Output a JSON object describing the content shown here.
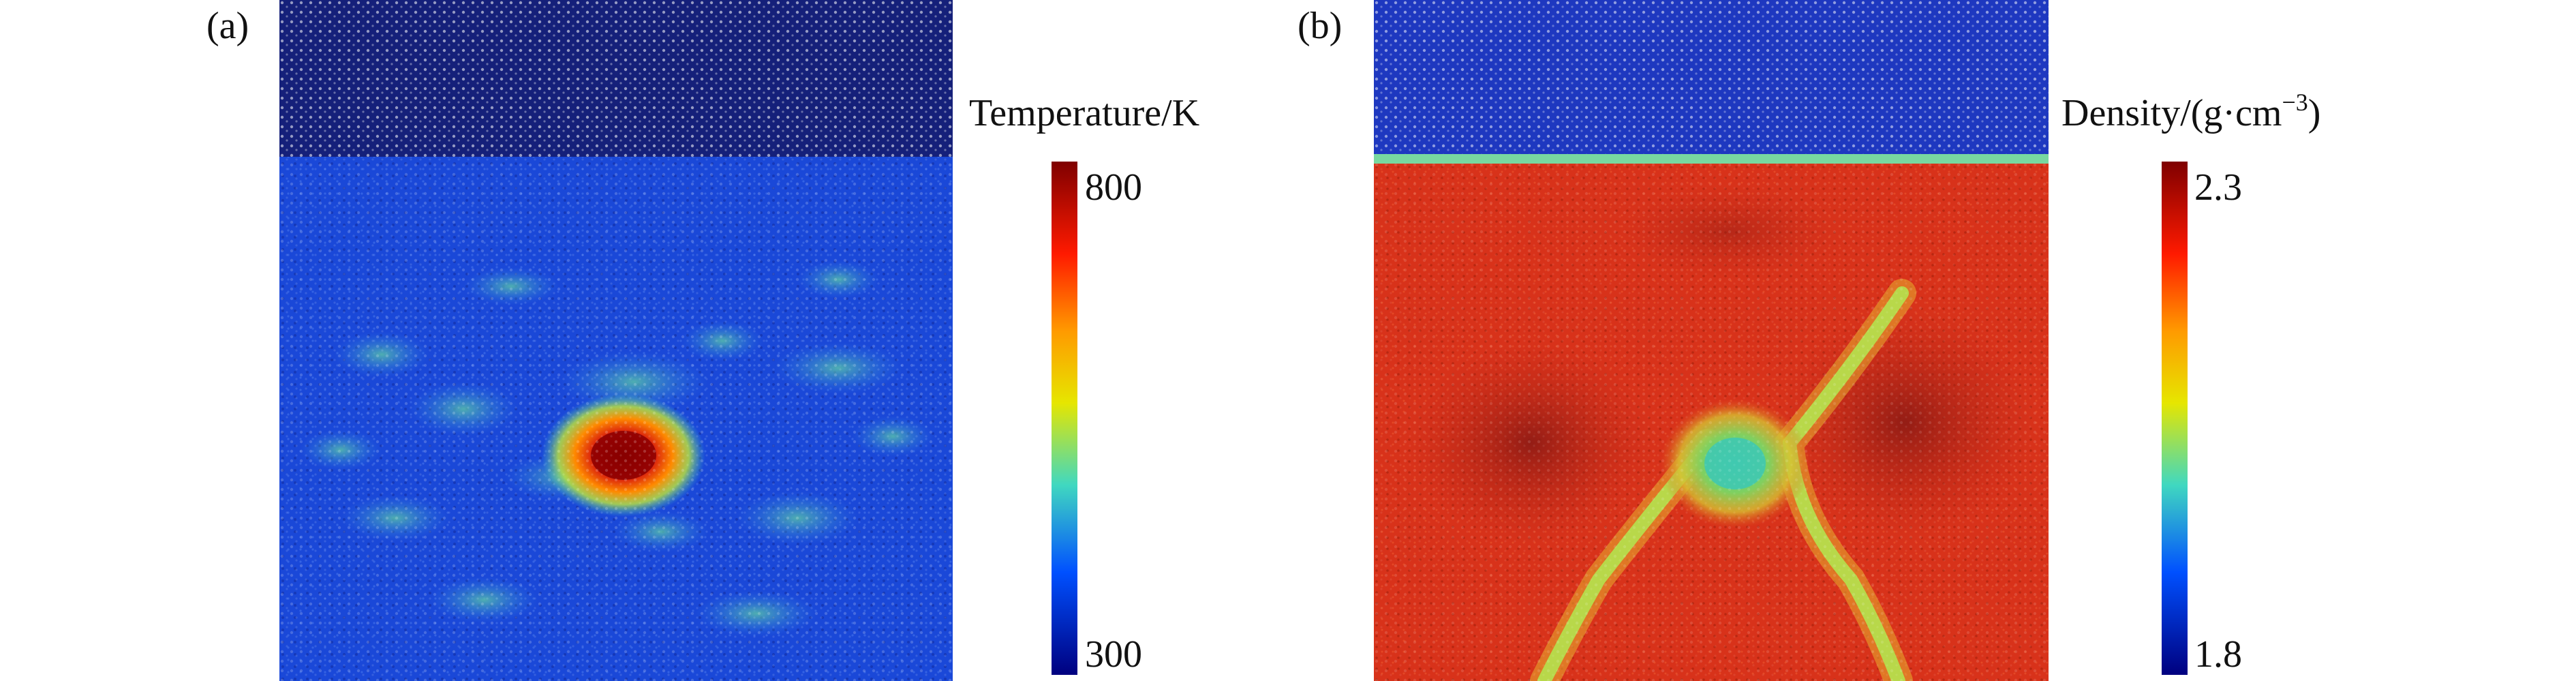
{
  "panels": [
    {
      "label": "(a)",
      "colorbar": {
        "title": "Temperature/K",
        "max_label": "800",
        "min_label": "300"
      }
    },
    {
      "label": "(b)",
      "colorbar": {
        "title_prefix": "Density/(g·cm",
        "title_exponent": "−3",
        "title_suffix": ")",
        "max_label": "2.3",
        "min_label": "1.8"
      }
    }
  ],
  "colors": {
    "jet_dark_red": "#7f0000",
    "jet_red": "#ff2000",
    "jet_yellow": "#e6e600",
    "jet_cyan": "#30d0d0",
    "jet_blue": "#0040ff",
    "jet_dark_blue": "#00007f",
    "substrate_dark": "#101a66",
    "matrix_blue": "#1840d0",
    "matrix_red": "#d83218"
  }
}
